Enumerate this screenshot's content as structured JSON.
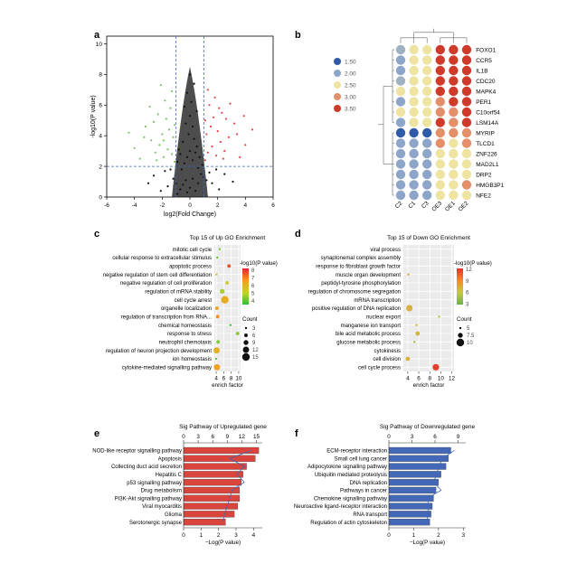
{
  "panels": {
    "a": "a",
    "b": "b",
    "c": "c",
    "d": "d",
    "e": "e",
    "f": "f"
  },
  "chart_data": [
    {
      "id": "a",
      "type": "scatter",
      "title": "",
      "xlabel": "log2(Fold Change)",
      "ylabel": "-log10(P value)",
      "xlim": [
        -6,
        6
      ],
      "ylim": [
        0,
        10.5
      ],
      "xticks": [
        -6,
        -4,
        -2,
        0,
        2,
        4,
        6
      ],
      "yticks": [
        0,
        2,
        4,
        6,
        8,
        10
      ],
      "thresholds": {
        "x": [
          -1,
          1
        ],
        "y": 2
      },
      "colors": {
        "down": "#7ac36a",
        "up": "#e0474c",
        "ns": "#111111"
      },
      "series": [
        {
          "group": "ns",
          "points": [
            [
              -0.9,
              0.2
            ],
            [
              -0.7,
              0.5
            ],
            [
              -0.5,
              0.8
            ],
            [
              -0.3,
              1.1
            ],
            [
              -0.2,
              0.3
            ],
            [
              0,
              0.6
            ],
            [
              0.2,
              1.2
            ],
            [
              0.4,
              0.4
            ],
            [
              0.6,
              0.9
            ],
            [
              0.8,
              1.5
            ],
            [
              -0.6,
              1.8
            ],
            [
              -0.4,
              2.2
            ],
            [
              -0.2,
              2.6
            ],
            [
              0,
              3.0
            ],
            [
              0.2,
              2.4
            ],
            [
              0.4,
              2.9
            ],
            [
              0.6,
              1.9
            ],
            [
              -0.8,
              3.1
            ],
            [
              -0.5,
              3.6
            ],
            [
              -0.1,
              4.1
            ],
            [
              0.3,
              3.8
            ],
            [
              0.5,
              3.3
            ],
            [
              -0.3,
              4.8
            ],
            [
              0,
              5.3
            ],
            [
              0.2,
              4.6
            ],
            [
              -0.7,
              2.8
            ],
            [
              0.7,
              2.6
            ],
            [
              -1.2,
              1.2
            ],
            [
              1.2,
              1.1
            ],
            [
              -1.6,
              0.7
            ],
            [
              1.6,
              0.9
            ],
            [
              -2.1,
              0.4
            ],
            [
              2.1,
              0.5
            ],
            [
              -2.6,
              1.4
            ],
            [
              2.5,
              1.5
            ],
            [
              -3,
              0.9
            ],
            [
              3.1,
              1.0
            ],
            [
              -1.8,
              1.7
            ],
            [
              1.9,
              1.8
            ],
            [
              0.1,
              6.2
            ],
            [
              -0.2,
              6.8
            ],
            [
              0.3,
              7.4
            ],
            [
              0,
              8.0
            ],
            [
              -0.4,
              5.9
            ],
            [
              0.5,
              5.6
            ],
            [
              -1.0,
              0.9
            ],
            [
              1.0,
              1.3
            ],
            [
              -1.4,
              1.8
            ],
            [
              1.4,
              1.6
            ],
            [
              0.9,
              2.1
            ],
            [
              -0.9,
              2.3
            ]
          ]
        },
        {
          "group": "down",
          "points": [
            [
              -1.1,
              2.3
            ],
            [
              -1.3,
              2.8
            ],
            [
              -1.6,
              3.1
            ],
            [
              -1.9,
              2.6
            ],
            [
              -2.2,
              3.4
            ],
            [
              -2.5,
              2.9
            ],
            [
              -1.2,
              3.9
            ],
            [
              -1.5,
              4.4
            ],
            [
              -2.0,
              4.1
            ],
            [
              -2.8,
              3.7
            ],
            [
              -3.2,
              4.6
            ],
            [
              -1.7,
              5.1
            ],
            [
              -2.3,
              5.4
            ],
            [
              -1.4,
              5.8
            ],
            [
              -3.6,
              2.5
            ],
            [
              -4.0,
              3.2
            ],
            [
              -2.6,
              4.9
            ],
            [
              -1.8,
              6.3
            ],
            [
              -2.9,
              5.9
            ],
            [
              -1.3,
              6.9
            ],
            [
              -2.1,
              7.3
            ],
            [
              -3.3,
              3.9
            ],
            [
              -1.1,
              4.7
            ],
            [
              -2.4,
              2.4
            ],
            [
              -1.9,
              3.7
            ],
            [
              -4.4,
              4.2
            ]
          ]
        },
        {
          "group": "up",
          "points": [
            [
              1.1,
              2.4
            ],
            [
              1.3,
              2.9
            ],
            [
              1.6,
              3.3
            ],
            [
              1.9,
              2.7
            ],
            [
              2.2,
              3.6
            ],
            [
              2.5,
              3.0
            ],
            [
              1.2,
              4.1
            ],
            [
              1.5,
              4.6
            ],
            [
              2.0,
              4.3
            ],
            [
              2.8,
              3.9
            ],
            [
              3.2,
              4.8
            ],
            [
              1.7,
              5.2
            ],
            [
              2.3,
              5.5
            ],
            [
              1.4,
              6.0
            ],
            [
              3.6,
              2.6
            ],
            [
              4.0,
              3.4
            ],
            [
              2.6,
              5.1
            ],
            [
              1.8,
              6.5
            ],
            [
              2.9,
              6.1
            ],
            [
              1.3,
              7.0
            ],
            [
              2.1,
              5.8
            ],
            [
              3.4,
              4.1
            ],
            [
              1.1,
              5.0
            ],
            [
              2.4,
              2.5
            ],
            [
              4.5,
              4.4
            ],
            [
              3.9,
              5.3
            ]
          ]
        }
      ]
    },
    {
      "id": "b",
      "type": "heatmap",
      "title": "",
      "columns": [
        "C2",
        "C1",
        "C3",
        "OE3",
        "OE1",
        "OE2"
      ],
      "rows": [
        "FOXO1",
        "CCR5",
        "IL1B",
        "CDC20",
        "MAPK4",
        "PER1",
        "C10orf54",
        "LSM14A",
        "MYRIP",
        "TLCD1",
        "ZNF226",
        "MAD2L1",
        "DRP2",
        "HMGB3P1",
        "NFE2"
      ],
      "legend": {
        "labels": [
          "1.50",
          "2.00",
          "2.50",
          "3.00",
          "3.50"
        ],
        "values": [
          1.5,
          2.0,
          2.5,
          3.0,
          3.5
        ],
        "colors": [
          "#2f5aa8",
          "#8ca5c9",
          "#efe3a2",
          "#e58f6a",
          "#d03a2a"
        ]
      },
      "values": [
        [
          2.1,
          2.5,
          2.5,
          3.5,
          3.5,
          3.5
        ],
        [
          2.0,
          2.5,
          2.5,
          3.5,
          3.5,
          3.5
        ],
        [
          2.0,
          2.5,
          2.5,
          3.5,
          3.5,
          3.5
        ],
        [
          2.1,
          2.5,
          2.5,
          3.5,
          3.5,
          3.5
        ],
        [
          2.5,
          2.5,
          2.5,
          3.5,
          3.5,
          3.5
        ],
        [
          2.0,
          2.5,
          2.5,
          3.0,
          3.5,
          3.5
        ],
        [
          2.5,
          2.5,
          2.5,
          3.0,
          3.0,
          3.5
        ],
        [
          2.0,
          2.5,
          2.5,
          3.5,
          3.0,
          3.5
        ],
        [
          1.5,
          1.5,
          1.5,
          3.0,
          3.0,
          3.0
        ],
        [
          2.0,
          2.0,
          2.0,
          3.0,
          2.5,
          3.0
        ],
        [
          2.0,
          2.0,
          2.0,
          2.5,
          2.5,
          2.5
        ],
        [
          2.0,
          2.0,
          2.0,
          2.5,
          2.5,
          2.5
        ],
        [
          2.0,
          2.0,
          2.0,
          2.5,
          2.5,
          2.5
        ],
        [
          2.0,
          2.0,
          2.0,
          2.5,
          2.5,
          3.0
        ],
        [
          2.0,
          2.0,
          2.0,
          2.5,
          2.5,
          2.5
        ]
      ]
    },
    {
      "id": "c",
      "type": "scatter",
      "title": "Top 15 of Up GO Enrichment",
      "xlabel": "enrich factor",
      "ylabel": "",
      "xlim": [
        3.5,
        10.5
      ],
      "xticks": [
        4,
        6,
        8,
        10
      ],
      "terms": [
        "mitotic cell cycle",
        "cellular response to extracellular stimulus",
        "apoptotic process",
        "negative regulation of stem cell differentiation",
        "negative regulation of cell proliferation",
        "regulation of mRNA stability",
        "cell cycle arrest",
        "organelle localization",
        "regulation of transcription from RNA...",
        "chemical homeostasis",
        "response to stress",
        "neutrophil chemotaxis",
        "regulation of neuron projection development",
        "ion homeostasis",
        "cytokine-mediated signalling pathway"
      ],
      "enrich": [
        4.9,
        4.3,
        7.4,
        4.1,
        6.9,
        5.6,
        6.3,
        4.2,
        4.4,
        7.8,
        9.7,
        4.5,
        4.1,
        4.0,
        4.2
      ],
      "counts": [
        3,
        3,
        6,
        3,
        6,
        9,
        15,
        6,
        6,
        3,
        6,
        6,
        12,
        3,
        12
      ],
      "pvalue": [
        4.2,
        4.0,
        7.6,
        5.5,
        5.2,
        4.8,
        6.2,
        6.3,
        6.8,
        3.6,
        4.5,
        4.3,
        6.0,
        4.1,
        6.4
      ],
      "color_title": "-log10(P value)",
      "color_ticks": [
        8,
        7,
        6,
        5,
        4
      ],
      "color_range": [
        3.5,
        8.2
      ],
      "size_title": "Count",
      "size_ticks": [
        3,
        6,
        9,
        12,
        15
      ]
    },
    {
      "id": "d",
      "type": "scatter",
      "title": "Top 15 of Down GO Enrichment",
      "xlabel": "enrich factor",
      "ylabel": "",
      "xlim": [
        3.2,
        12.4
      ],
      "xticks": [
        4,
        6,
        8,
        10,
        12
      ],
      "terms": [
        "viral process",
        "synaptonemal complex assembly",
        "response to fibroblast growth factor",
        "muscle organ development",
        "peptidyl-tyrosine phosphorylation",
        "regulation of chromosome segregation",
        "mRNA transcription",
        "positive regulation of DNA replication",
        "nuclear export",
        "manganese ion transport",
        "bile acid metabolic process",
        "glucose metabolic process",
        "cytokinesis",
        "cell division",
        "cell cycle process"
      ],
      "enrich": [
        12.1,
        4.7,
        4.4,
        4.1,
        11.6,
        11.8,
        5.4,
        4.3,
        9.7,
        5.6,
        5.8,
        5.2,
        8.2,
        4.0,
        9.1
      ],
      "counts": [
        3,
        3,
        3,
        5,
        3,
        3,
        3,
        9,
        5,
        5,
        7,
        5,
        3,
        7,
        9
      ],
      "pvalue": [
        3.5,
        5.0,
        6.0,
        7.5,
        7.0,
        3.8,
        3.5,
        7.0,
        5.0,
        6.5,
        7.0,
        4.8,
        3.6,
        7.0,
        11.8
      ],
      "color_title": "-log10(P value)",
      "color_ticks": [
        12,
        9,
        6,
        3
      ],
      "color_range": [
        2.8,
        12.2
      ],
      "size_title": "Count",
      "size_ticks": [
        5.0,
        7.5,
        10.0
      ]
    },
    {
      "id": "e",
      "type": "bar",
      "orientation": "horizontal",
      "title": "Sig Pathway of Upregulated gene",
      "xlabel": "−Log(P value)",
      "ylabel": "",
      "xlim": [
        0,
        4.5
      ],
      "xticks": [
        0,
        1,
        2,
        3,
        4
      ],
      "top_axis": {
        "ticks": [
          0,
          3,
          6,
          9,
          12,
          15
        ],
        "lim": [
          0,
          16.2
        ]
      },
      "categories": [
        "NOD-like receptor signalling pathway",
        "Apoptosis",
        "Collecting duct acid secretion",
        "Hepatitis C",
        "p53 signalling pathway",
        "Drug metabolism",
        "PI3K-Akt signalling pathway",
        "Viral myocarditis",
        "Glioma",
        "Serotonergic synapse"
      ],
      "values": [
        4.3,
        4.1,
        3.6,
        3.4,
        3.3,
        3.2,
        3.2,
        3.1,
        2.9,
        2.4
      ],
      "line_values": [
        14.0,
        9.5,
        12.5,
        11.0,
        12.5,
        10.0,
        9.5,
        9.0,
        8.5,
        8.0
      ],
      "bar_color": "#d9443d",
      "line_color": "#3f66b4"
    },
    {
      "id": "f",
      "type": "bar",
      "orientation": "horizontal",
      "title": "Sig Pathway of Downregulated gene",
      "xlabel": "−Log(P value)",
      "ylabel": "",
      "xlim": [
        0,
        3.1
      ],
      "xticks": [
        0,
        1,
        2,
        3
      ],
      "top_axis": {
        "ticks": [
          0,
          3,
          6,
          9
        ],
        "lim": [
          0,
          10.0
        ]
      },
      "categories": [
        "ECM-receptor interaction",
        "Small cell lung cancer",
        "Adipocytokine signalling pathway",
        "Ubiquitin mediated proteolysis",
        "DNA replication",
        "Pathways in cancer",
        "Chemokine signalling pathway",
        "Neuroactive ligand-receptor interaction",
        "RNA transport",
        "Regulation of actin cytoskeleton"
      ],
      "values": [
        2.5,
        2.4,
        2.3,
        2.1,
        2.0,
        1.9,
        1.8,
        1.75,
        1.7,
        1.65
      ],
      "line_values": [
        8.5,
        7.0,
        6.5,
        6.2,
        5.8,
        6.8,
        5.0,
        5.2,
        5.0,
        5.0
      ],
      "bar_color": "#4468b8",
      "line_color": "#3f66b4"
    }
  ]
}
